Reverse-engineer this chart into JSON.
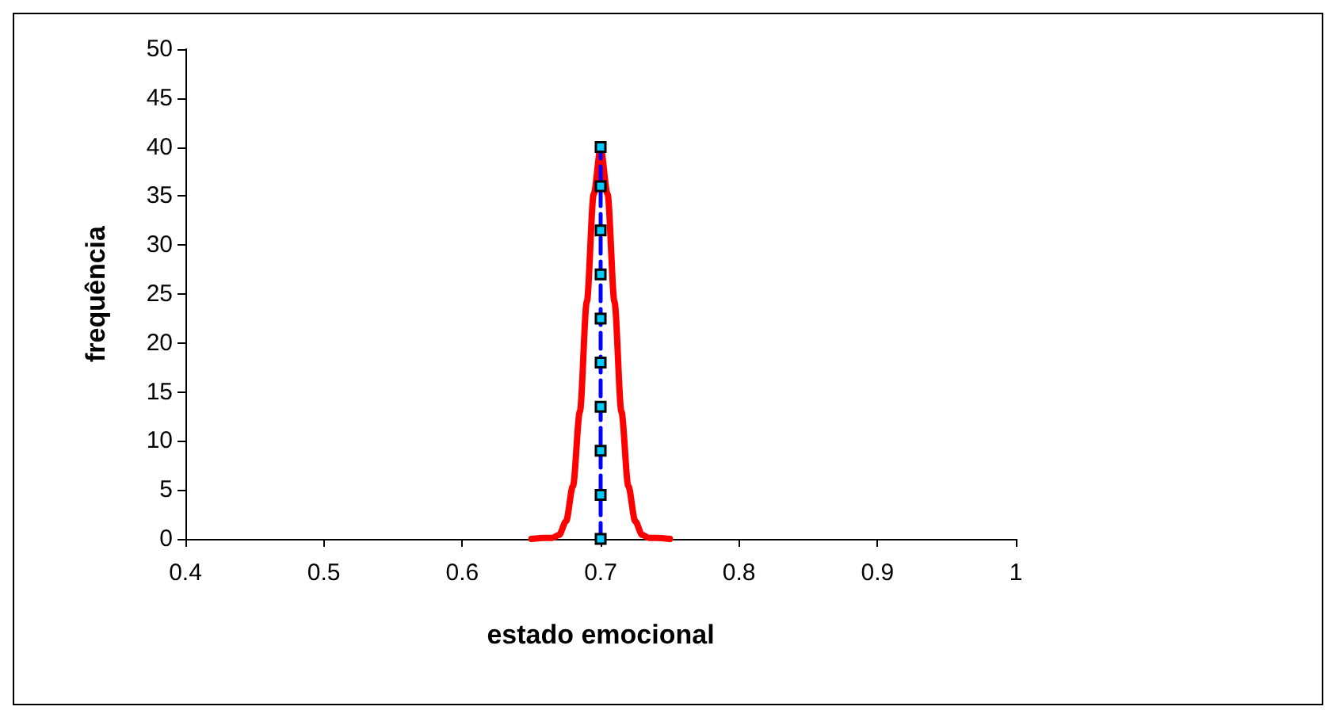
{
  "chart_data": {
    "type": "line",
    "xlabel": "estado emocional",
    "ylabel": "frequência",
    "xlim": [
      0.4,
      1
    ],
    "xticks": [
      0.4,
      0.5,
      0.6,
      0.7,
      0.8,
      0.9,
      1
    ],
    "ylim": [
      0,
      50
    ],
    "yticks": [
      0,
      5,
      10,
      15,
      20,
      25,
      30,
      35,
      40,
      45,
      50
    ],
    "grid": false,
    "series": [
      {
        "color": "#ff0000",
        "marker": "none",
        "line_style": "solid",
        "x": [
          0.65,
          0.66,
          0.665,
          0.67,
          0.675,
          0.68,
          0.685,
          0.69,
          0.695,
          0.7,
          0.705,
          0.71,
          0.715,
          0.72,
          0.725,
          0.73,
          0.735,
          0.74,
          0.75
        ],
        "values": [
          0,
          0.1,
          0.1,
          0.4,
          1.8,
          5.4,
          13,
          24.2,
          35.2,
          39.9,
          35.2,
          24.2,
          13,
          5.4,
          1.8,
          0.4,
          0.1,
          0.1,
          0
        ]
      },
      {
        "color": "#0000ff",
        "marker": "square",
        "line_style": "dashed",
        "x": [
          0.7,
          0.7,
          0.7,
          0.7,
          0.7,
          0.7,
          0.7,
          0.7,
          0.7,
          0.7
        ],
        "values": [
          0,
          4.5,
          9,
          13.5,
          18,
          22.5,
          27,
          31.5,
          36,
          40
        ]
      }
    ]
  }
}
